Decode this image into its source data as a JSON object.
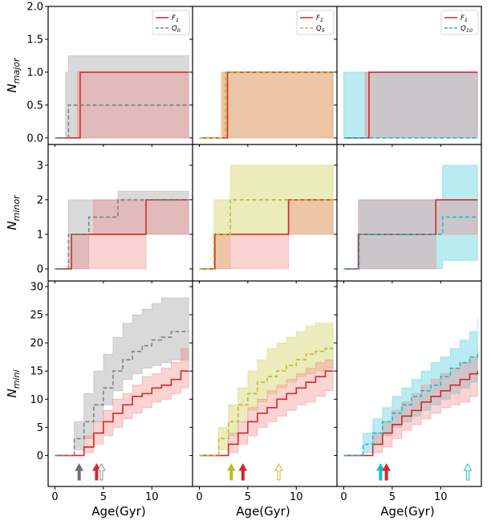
{
  "chart_data": {
    "type": "line",
    "layout": "3x3 grid of step-line panels with shaded uncertainty bands; columns share x-axis, rows share y-axis",
    "x_axis": {
      "label": "Age(Gyr)",
      "ticks": [
        0,
        5,
        10
      ],
      "tick_labels": [
        "0",
        "5",
        "10"
      ],
      "xlim": [
        -0.7,
        14.2
      ]
    },
    "rows": [
      {
        "name": "major",
        "ylabel": "N_major",
        "ylabel_base": "N",
        "ylabel_sub": "major",
        "ylim": [
          -0.1,
          2.0
        ],
        "ticks": [
          0.0,
          0.5,
          1.0,
          1.5,
          2.0
        ],
        "tick_labels": [
          "0.0",
          "0.5",
          "1.0",
          "1.5",
          "2.0"
        ]
      },
      {
        "name": "minor",
        "ylabel": "N_minor",
        "ylabel_base": "N",
        "ylabel_sub": "minor",
        "ylim": [
          -0.35,
          3.6
        ],
        "ticks": [
          0,
          1,
          2,
          3
        ],
        "tick_labels": [
          "0",
          "1",
          "2",
          "3"
        ]
      },
      {
        "name": "mini",
        "ylabel": "N_mini",
        "ylabel_base": "N",
        "ylabel_sub": "mini",
        "ylim": [
          -5.5,
          31
        ],
        "ticks": [
          0,
          5,
          10,
          15,
          20,
          25,
          30
        ],
        "tick_labels": [
          "0",
          "5",
          "10",
          "15",
          "20",
          "25",
          "30"
        ]
      }
    ],
    "columns": [
      {
        "compare_name": "Q0",
        "compare_base": "Q",
        "compare_sub": "0",
        "compare_color": "#808080",
        "arrows": [
          {
            "x": 2.5,
            "color": "#707070",
            "filled": true
          },
          {
            "x": 4.3,
            "color": "#d62728",
            "filled": true
          },
          {
            "x": 4.8,
            "color": "#909090",
            "filled": false
          }
        ]
      },
      {
        "compare_name": "Q5",
        "compare_base": "Q",
        "compare_sub": "5",
        "compare_color": "#bcbd22",
        "arrows": [
          {
            "x": 3.3,
            "color": "#bcbd22",
            "filled": true
          },
          {
            "x": 4.5,
            "color": "#d62728",
            "filled": true
          },
          {
            "x": 8.2,
            "color": "#bcbd22",
            "filled": false
          }
        ]
      },
      {
        "compare_name": "Q10",
        "compare_base": "Q",
        "compare_sub": "10",
        "compare_color": "#17becf",
        "arrows": [
          {
            "x": 3.8,
            "color": "#17becf",
            "filled": true
          },
          {
            "x": 4.4,
            "color": "#d62728",
            "filled": true
          },
          {
            "x": 12.8,
            "color": "#17becf",
            "filled": false
          }
        ]
      }
    ],
    "reference_series": {
      "name": "F1",
      "legend_base": "F",
      "legend_sub": "1",
      "color": "#d62728",
      "band_color": "#f08080"
    },
    "panels": [
      {
        "row": 0,
        "col": 0,
        "f1": {
          "x": [
            0,
            2.3,
            2.6,
            13.8
          ],
          "y": [
            0,
            0,
            1,
            1
          ],
          "lo": [
            0,
            0,
            0,
            0
          ],
          "hi": [
            0,
            1,
            1,
            1
          ]
        },
        "comp": {
          "x": [
            0,
            1.1,
            1.4,
            13.8
          ],
          "y": [
            0,
            0,
            0.5,
            0.5
          ],
          "lo": [
            0,
            0,
            0,
            0
          ],
          "hi": [
            0,
            1,
            1.25,
            1.25
          ]
        }
      },
      {
        "row": 0,
        "col": 1,
        "f1": {
          "x": [
            0,
            2.4,
            2.9,
            13.8
          ],
          "y": [
            0,
            0,
            1,
            1
          ],
          "lo": [
            0,
            0,
            0,
            0
          ],
          "hi": [
            0,
            1,
            1,
            1
          ]
        },
        "comp": {
          "x": [
            0,
            2.2,
            2.7,
            13.8
          ],
          "y": [
            0,
            0,
            1,
            1
          ],
          "lo": [
            0,
            0,
            0,
            0
          ],
          "hi": [
            0,
            1,
            1,
            1
          ]
        }
      },
      {
        "row": 0,
        "col": 2,
        "f1": {
          "x": [
            0,
            2.2,
            2.6,
            13.8
          ],
          "y": [
            0,
            0,
            1,
            1
          ],
          "lo": [
            0,
            0,
            0,
            0
          ],
          "hi": [
            0,
            1,
            1,
            1
          ]
        },
        "comp": {
          "x": [
            0,
            13.8
          ],
          "y": [
            0,
            0
          ],
          "lo": [
            0,
            0
          ],
          "hi": [
            1,
            1
          ]
        }
      },
      {
        "row": 1,
        "col": 0,
        "f1": {
          "x": [
            0,
            1.7,
            4.0,
            9.4,
            13.8
          ],
          "y": [
            0,
            1,
            1,
            2,
            2
          ],
          "lo": [
            0,
            0,
            0,
            1,
            1
          ],
          "hi": [
            0,
            1,
            2,
            2,
            2
          ]
        },
        "comp": {
          "x": [
            0,
            1.4,
            3.5,
            6.5,
            13.8
          ],
          "y": [
            0,
            1,
            1.5,
            2,
            2
          ],
          "lo": [
            0,
            0,
            1,
            1,
            1
          ],
          "hi": [
            0,
            2,
            2,
            2.25,
            2.25
          ]
        }
      },
      {
        "row": 1,
        "col": 1,
        "f1": {
          "x": [
            0,
            1.6,
            9.2,
            13.8
          ],
          "y": [
            0,
            1,
            2,
            2
          ],
          "lo": [
            0,
            0,
            1,
            1
          ],
          "hi": [
            0,
            1,
            2,
            2
          ]
        },
        "comp": {
          "x": [
            0,
            1.5,
            3.2,
            13.8
          ],
          "y": [
            0,
            1,
            2,
            2
          ],
          "lo": [
            0,
            0,
            1,
            1
          ],
          "hi": [
            0,
            2,
            3,
            3
          ]
        }
      },
      {
        "row": 1,
        "col": 2,
        "f1": {
          "x": [
            0,
            1.5,
            9.5,
            13.8
          ],
          "y": [
            0,
            1,
            2,
            2
          ],
          "lo": [
            0,
            0,
            1,
            1
          ],
          "hi": [
            0,
            2,
            2,
            2
          ]
        },
        "comp": {
          "x": [
            0,
            1.6,
            10.2,
            13.8
          ],
          "y": [
            0,
            1,
            1.5,
            1.5
          ],
          "lo": [
            0,
            0,
            0.25,
            0.25
          ],
          "hi": [
            0,
            2,
            3,
            3
          ]
        }
      },
      {
        "row": 2,
        "col": 0,
        "f1": {
          "x": [
            0,
            1.5,
            3,
            4,
            5,
            6,
            7,
            8,
            9,
            10,
            11,
            12,
            13,
            13.8
          ],
          "y": [
            0,
            0,
            1.5,
            4,
            6,
            7.5,
            9,
            10.5,
            11,
            12,
            12.5,
            13.5,
            15,
            15
          ],
          "lo": [
            0,
            0,
            0.5,
            2,
            3.5,
            5,
            6.5,
            7.5,
            8.5,
            9.5,
            10,
            11,
            12,
            12
          ],
          "hi": [
            0,
            0,
            3.5,
            6,
            8,
            10,
            11,
            12.5,
            14,
            14.5,
            15.5,
            16.5,
            19,
            19
          ]
        },
        "comp": {
          "x": [
            0,
            1,
            2,
            3,
            4,
            5,
            6,
            7,
            8,
            9,
            10,
            11,
            12,
            13,
            13.8
          ],
          "y": [
            0,
            0,
            3,
            6,
            9,
            12,
            15,
            17,
            18.5,
            19.5,
            20.5,
            21,
            22,
            22,
            22
          ],
          "lo": [
            0,
            0,
            1,
            3,
            6,
            9,
            11.5,
            13.5,
            14.5,
            15.5,
            16,
            16.5,
            17,
            17,
            17
          ],
          "hi": [
            0,
            0,
            6,
            11,
            15,
            18,
            21,
            23.5,
            25,
            26,
            27,
            28,
            28,
            28,
            28
          ]
        }
      },
      {
        "row": 2,
        "col": 1,
        "f1": {
          "x": [
            0,
            1.5,
            3,
            4,
            5,
            6,
            7,
            8,
            9,
            10,
            11,
            12,
            13,
            13.8
          ],
          "y": [
            0,
            0,
            2,
            4,
            6,
            7.5,
            8.5,
            10,
            11,
            12,
            13,
            14,
            15,
            15
          ],
          "lo": [
            0,
            0,
            0.5,
            2,
            3.5,
            5,
            6,
            7,
            8,
            9,
            9.5,
            10.5,
            11.5,
            11.5
          ],
          "hi": [
            0,
            0,
            4,
            6,
            8.5,
            10,
            11.5,
            12.5,
            13.5,
            14.5,
            15.5,
            16.5,
            17,
            17
          ]
        },
        "comp": {
          "x": [
            0,
            1,
            2,
            3,
            4,
            5,
            6,
            7,
            8,
            9,
            10,
            11,
            12,
            13,
            13.8
          ],
          "y": [
            0,
            0,
            3,
            6,
            9,
            11,
            13,
            14,
            15,
            16,
            17,
            18,
            18.5,
            19,
            19
          ],
          "lo": [
            0,
            0,
            1,
            3.5,
            6,
            8,
            9.5,
            11,
            12,
            13,
            14,
            14.5,
            15,
            15.5,
            15.5
          ],
          "hi": [
            0,
            0,
            5,
            9,
            12,
            15,
            17,
            19,
            20,
            21,
            22,
            23,
            23.5,
            23.5,
            23.5
          ]
        }
      },
      {
        "row": 2,
        "col": 2,
        "f1": {
          "x": [
            0,
            1.5,
            3,
            4,
            5,
            6,
            7,
            8,
            9,
            10,
            11,
            12,
            13,
            13.8
          ],
          "y": [
            0,
            0,
            2,
            4,
            5.5,
            7,
            8,
            9.5,
            10.5,
            11.5,
            12.5,
            13.5,
            14.5,
            15
          ],
          "lo": [
            0,
            0,
            0.5,
            1.5,
            3,
            4.5,
            5.5,
            6.5,
            7.5,
            8.5,
            9,
            9.5,
            10.5,
            10.5
          ],
          "hi": [
            0,
            0,
            4,
            6,
            8,
            9.5,
            11,
            12.5,
            13.5,
            14.5,
            15.5,
            16.5,
            17.5,
            18.5
          ]
        },
        "comp": {
          "x": [
            0,
            1,
            2,
            3,
            4,
            5,
            6,
            7,
            8,
            9,
            10,
            11,
            12,
            13,
            13.8
          ],
          "y": [
            0,
            0,
            2,
            4,
            6,
            7.5,
            9,
            10.5,
            11.5,
            12.5,
            14,
            15.5,
            16.5,
            17.5,
            18.5
          ],
          "lo": [
            0,
            0,
            0.5,
            2,
            3.5,
            5,
            6,
            7,
            8,
            9,
            10,
            11,
            12,
            13,
            14
          ],
          "hi": [
            0,
            0,
            4,
            6.5,
            8.5,
            10.5,
            12,
            13.5,
            15,
            16.5,
            17.5,
            19,
            20.5,
            22,
            24.5
          ]
        }
      }
    ]
  }
}
